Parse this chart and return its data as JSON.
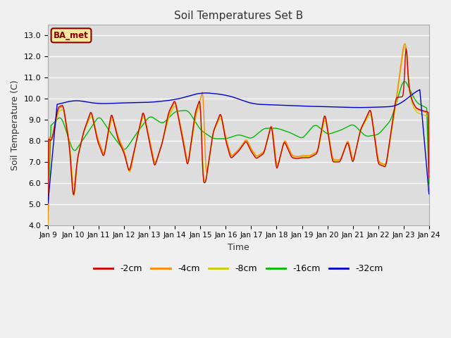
{
  "title": "Soil Temperatures Set B",
  "xlabel": "Time",
  "ylabel": "Soil Temperature (C)",
  "ylim": [
    4.0,
    13.5
  ],
  "yticks": [
    4.0,
    5.0,
    6.0,
    7.0,
    8.0,
    9.0,
    10.0,
    11.0,
    12.0,
    13.0
  ],
  "x_tick_labels": [
    "Jan 9",
    "Jan 10",
    "Jan 11",
    "Jan 12",
    "Jan 13",
    "Jan 14",
    "Jan 15",
    "Jan 16",
    "Jan 17",
    "Jan 18",
    "Jan 19",
    "Jan 20",
    "Jan 21",
    "Jan 22",
    "Jan 23",
    "Jan 24"
  ],
  "colors": {
    "-2cm": "#cc0000",
    "-4cm": "#ff8800",
    "-8cm": "#cccc00",
    "-16cm": "#00bb00",
    "-32cm": "#0000cc"
  },
  "legend_label": "BA_met",
  "fig_bg": "#f0f0f0",
  "plot_bg": "#dddddd",
  "grid_color": "#ffffff"
}
